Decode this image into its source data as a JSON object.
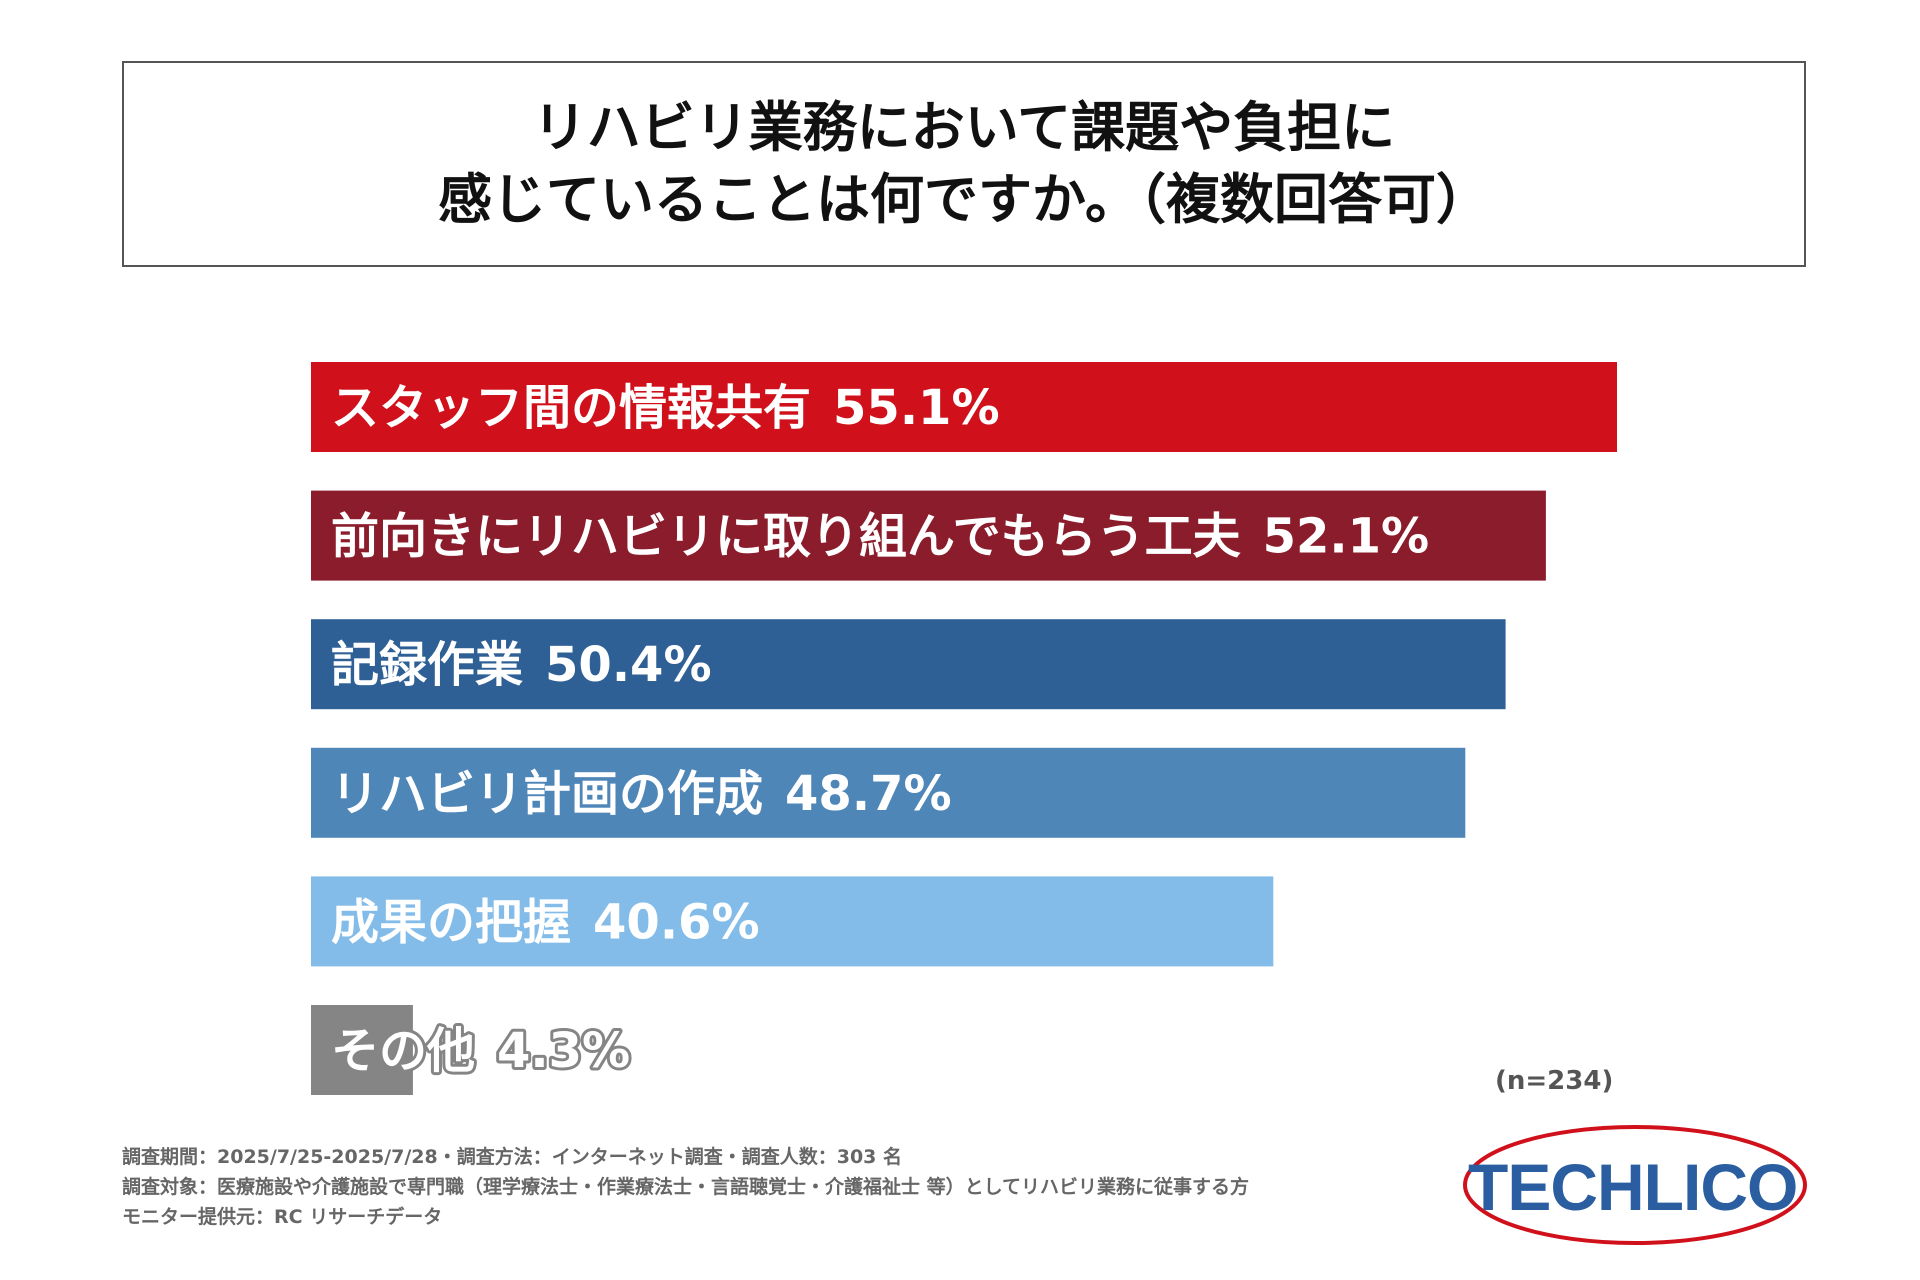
{
  "chart_data": {
    "type": "bar",
    "orientation": "horizontal",
    "title_lines": [
      "リハビリ業務において課題や負担に",
      "感じていることは何ですか。（複数回答可）"
    ],
    "categories": [
      "スタッフ間の情報共有",
      "前向きにリハビリに取り組んでもらう工夫",
      "記録作業",
      "リハビリ計画の作成",
      "成果の把握",
      "その他"
    ],
    "values": [
      55.1,
      52.1,
      50.4,
      48.7,
      40.6,
      4.3
    ],
    "value_labels": [
      "55.1%",
      "52.1%",
      "50.4%",
      "48.7%",
      "40.6%",
      "4.3%"
    ],
    "colors": [
      "#d0111b",
      "#8b1c2b",
      "#2e6096",
      "#4f86b8",
      "#83bce9",
      "#858585"
    ],
    "xlim": [
      0,
      55.1
    ],
    "grid": false,
    "legend": "none",
    "sample_size": "(n=234)"
  },
  "footer": {
    "line1": "調査期間：2025/7/25-2025/7/28・調査方法：インターネット調査・調査人数：303 名",
    "line2": "調査対象：医療施設や介護施設で専門職（理学療法士・作業療法士・言語聴覚士・介護福祉士 等）としてリハビリ業務に従事する方",
    "line3": "モニター提供元：RC リサーチデータ"
  },
  "logo": {
    "text": "TECHLICO",
    "text_color": "#2b5ea0",
    "ring_color": "#d0111b"
  }
}
